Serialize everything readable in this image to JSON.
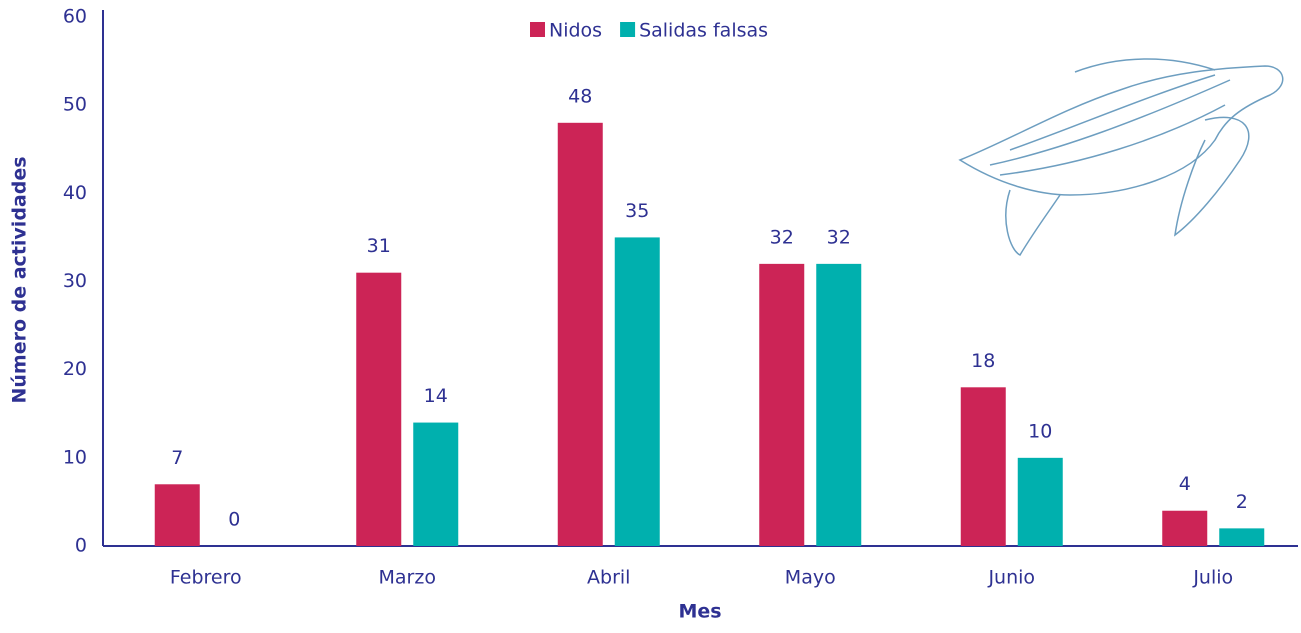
{
  "chart_data": {
    "type": "bar",
    "x_label": "Mes",
    "y_label": "Número de actividades",
    "categories": [
      "Febrero",
      "Marzo",
      "Abril",
      "Mayo",
      "Junio",
      "Julio"
    ],
    "series": [
      {
        "name": "Nidos",
        "color": "#cc2456",
        "values": [
          7,
          31,
          48,
          32,
          18,
          4
        ]
      },
      {
        "name": "Salidas falsas",
        "color": "#00b0ae",
        "values": [
          0,
          14,
          35,
          32,
          10,
          2
        ]
      }
    ],
    "ylim": [
      0,
      60
    ],
    "yticks": [
      0,
      10,
      20,
      30,
      40,
      50,
      60
    ],
    "grid": false,
    "legend": "top"
  }
}
